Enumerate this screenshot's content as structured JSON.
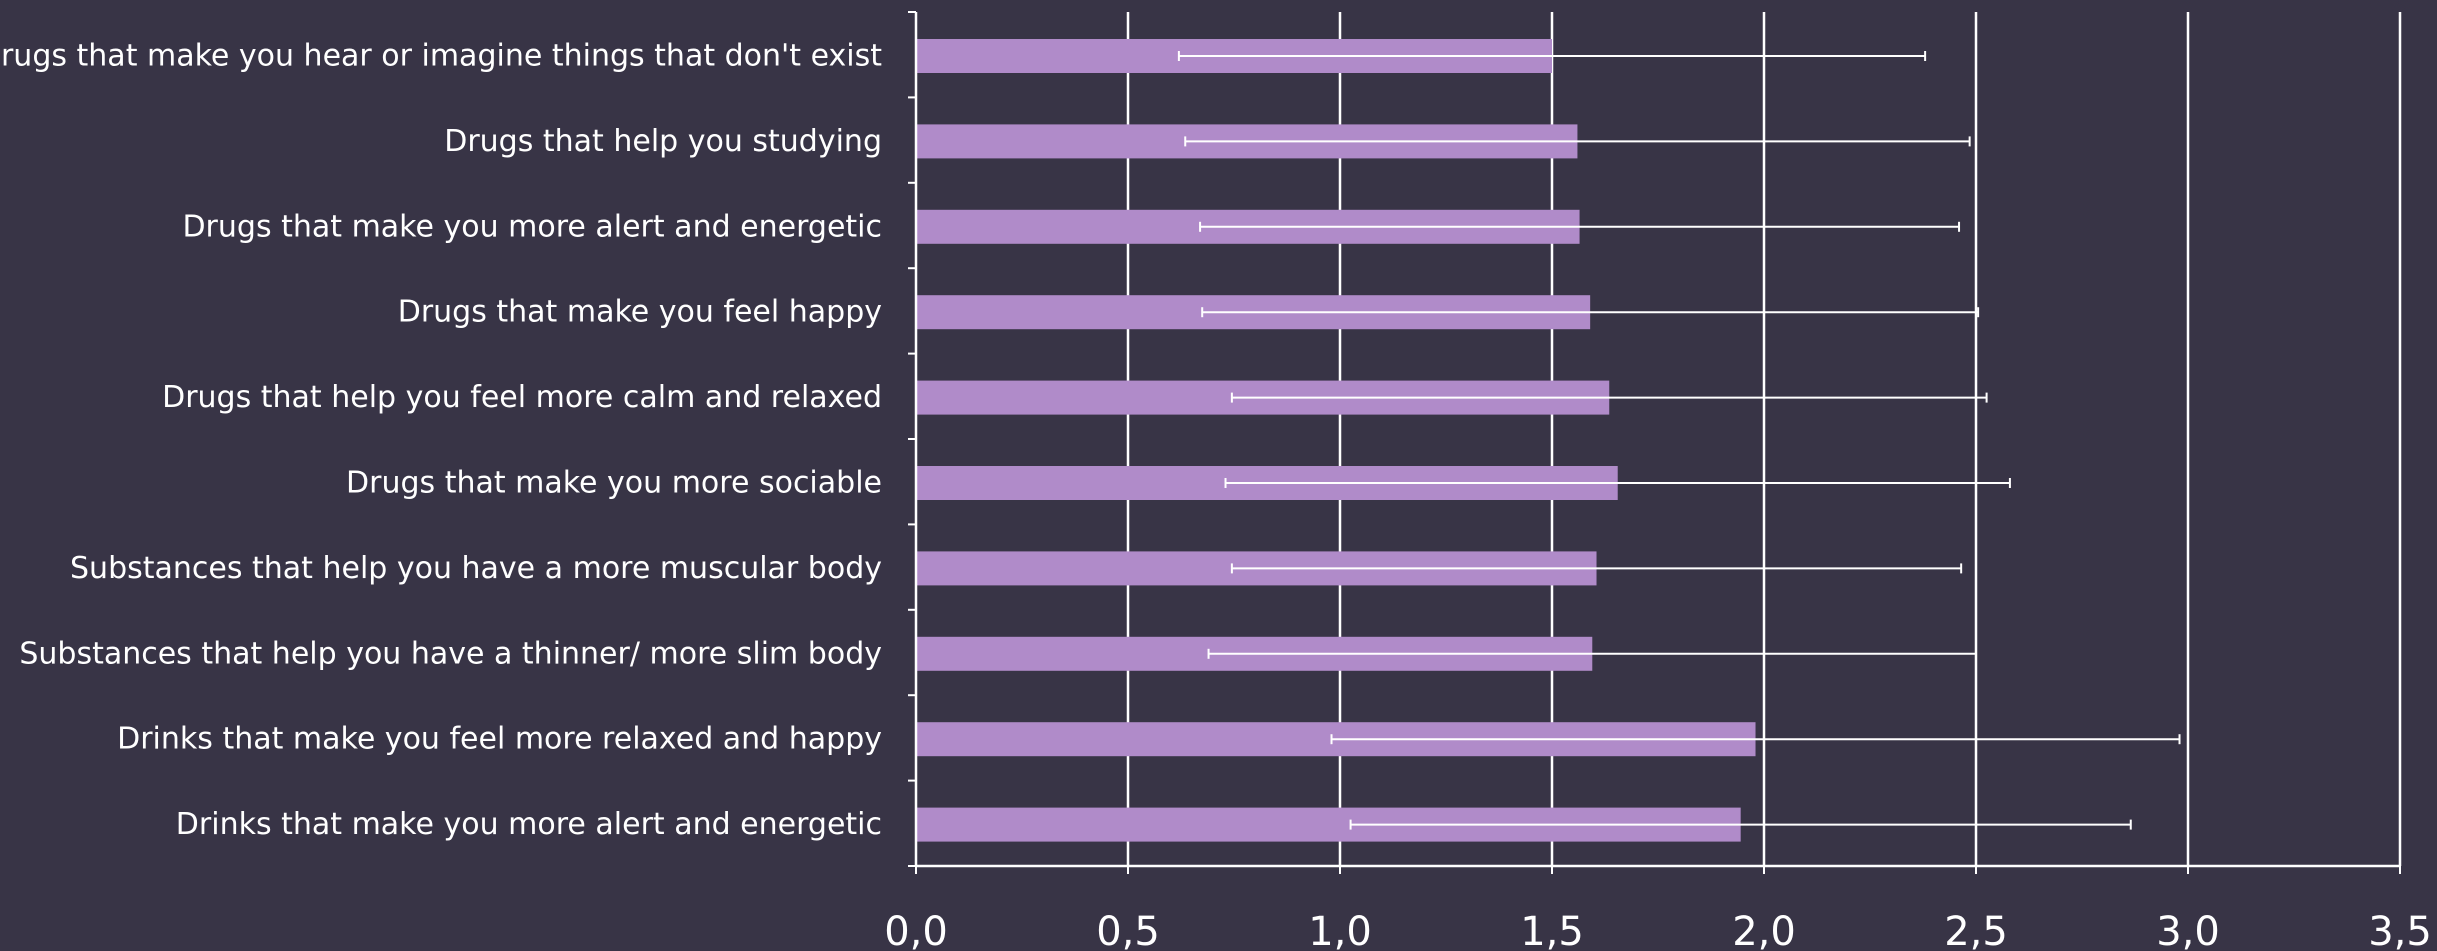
{
  "chart_data": {
    "type": "bar",
    "orientation": "horizontal",
    "categories": [
      "Drugs that make you hear or imagine things that don't exist",
      "Drugs that help you studying",
      "Drugs that make you more alert and energetic",
      "Drugs that make you feel happy",
      "Drugs that help you feel more calm and relaxed",
      "Drugs that make you more sociable",
      "Substances that help you have a more muscular body",
      "Substances that help you have a thinner/ more slim body",
      "Drinks that make you feel more relaxed and happy",
      "Drinks that make you more alert and energetic"
    ],
    "values": [
      1.5,
      1.56,
      1.565,
      1.59,
      1.635,
      1.655,
      1.605,
      1.595,
      1.98,
      1.945
    ],
    "error": [
      0.88,
      0.925,
      0.895,
      0.915,
      0.89,
      0.925,
      0.86,
      0.905,
      1.0,
      0.92
    ],
    "xlim": [
      0,
      3.5
    ],
    "xticks": [
      "0,0",
      "0,5",
      "1,0",
      "1,5",
      "2,0",
      "2,5",
      "3,0",
      "3,5"
    ],
    "xtick_values": [
      0,
      0.5,
      1.0,
      1.5,
      2.0,
      2.5,
      3.0,
      3.5
    ],
    "grid": true,
    "colors": {
      "bar": "#b08bc9",
      "background": "#383446",
      "grid": "#ffffff",
      "text": "#ffffff"
    }
  }
}
